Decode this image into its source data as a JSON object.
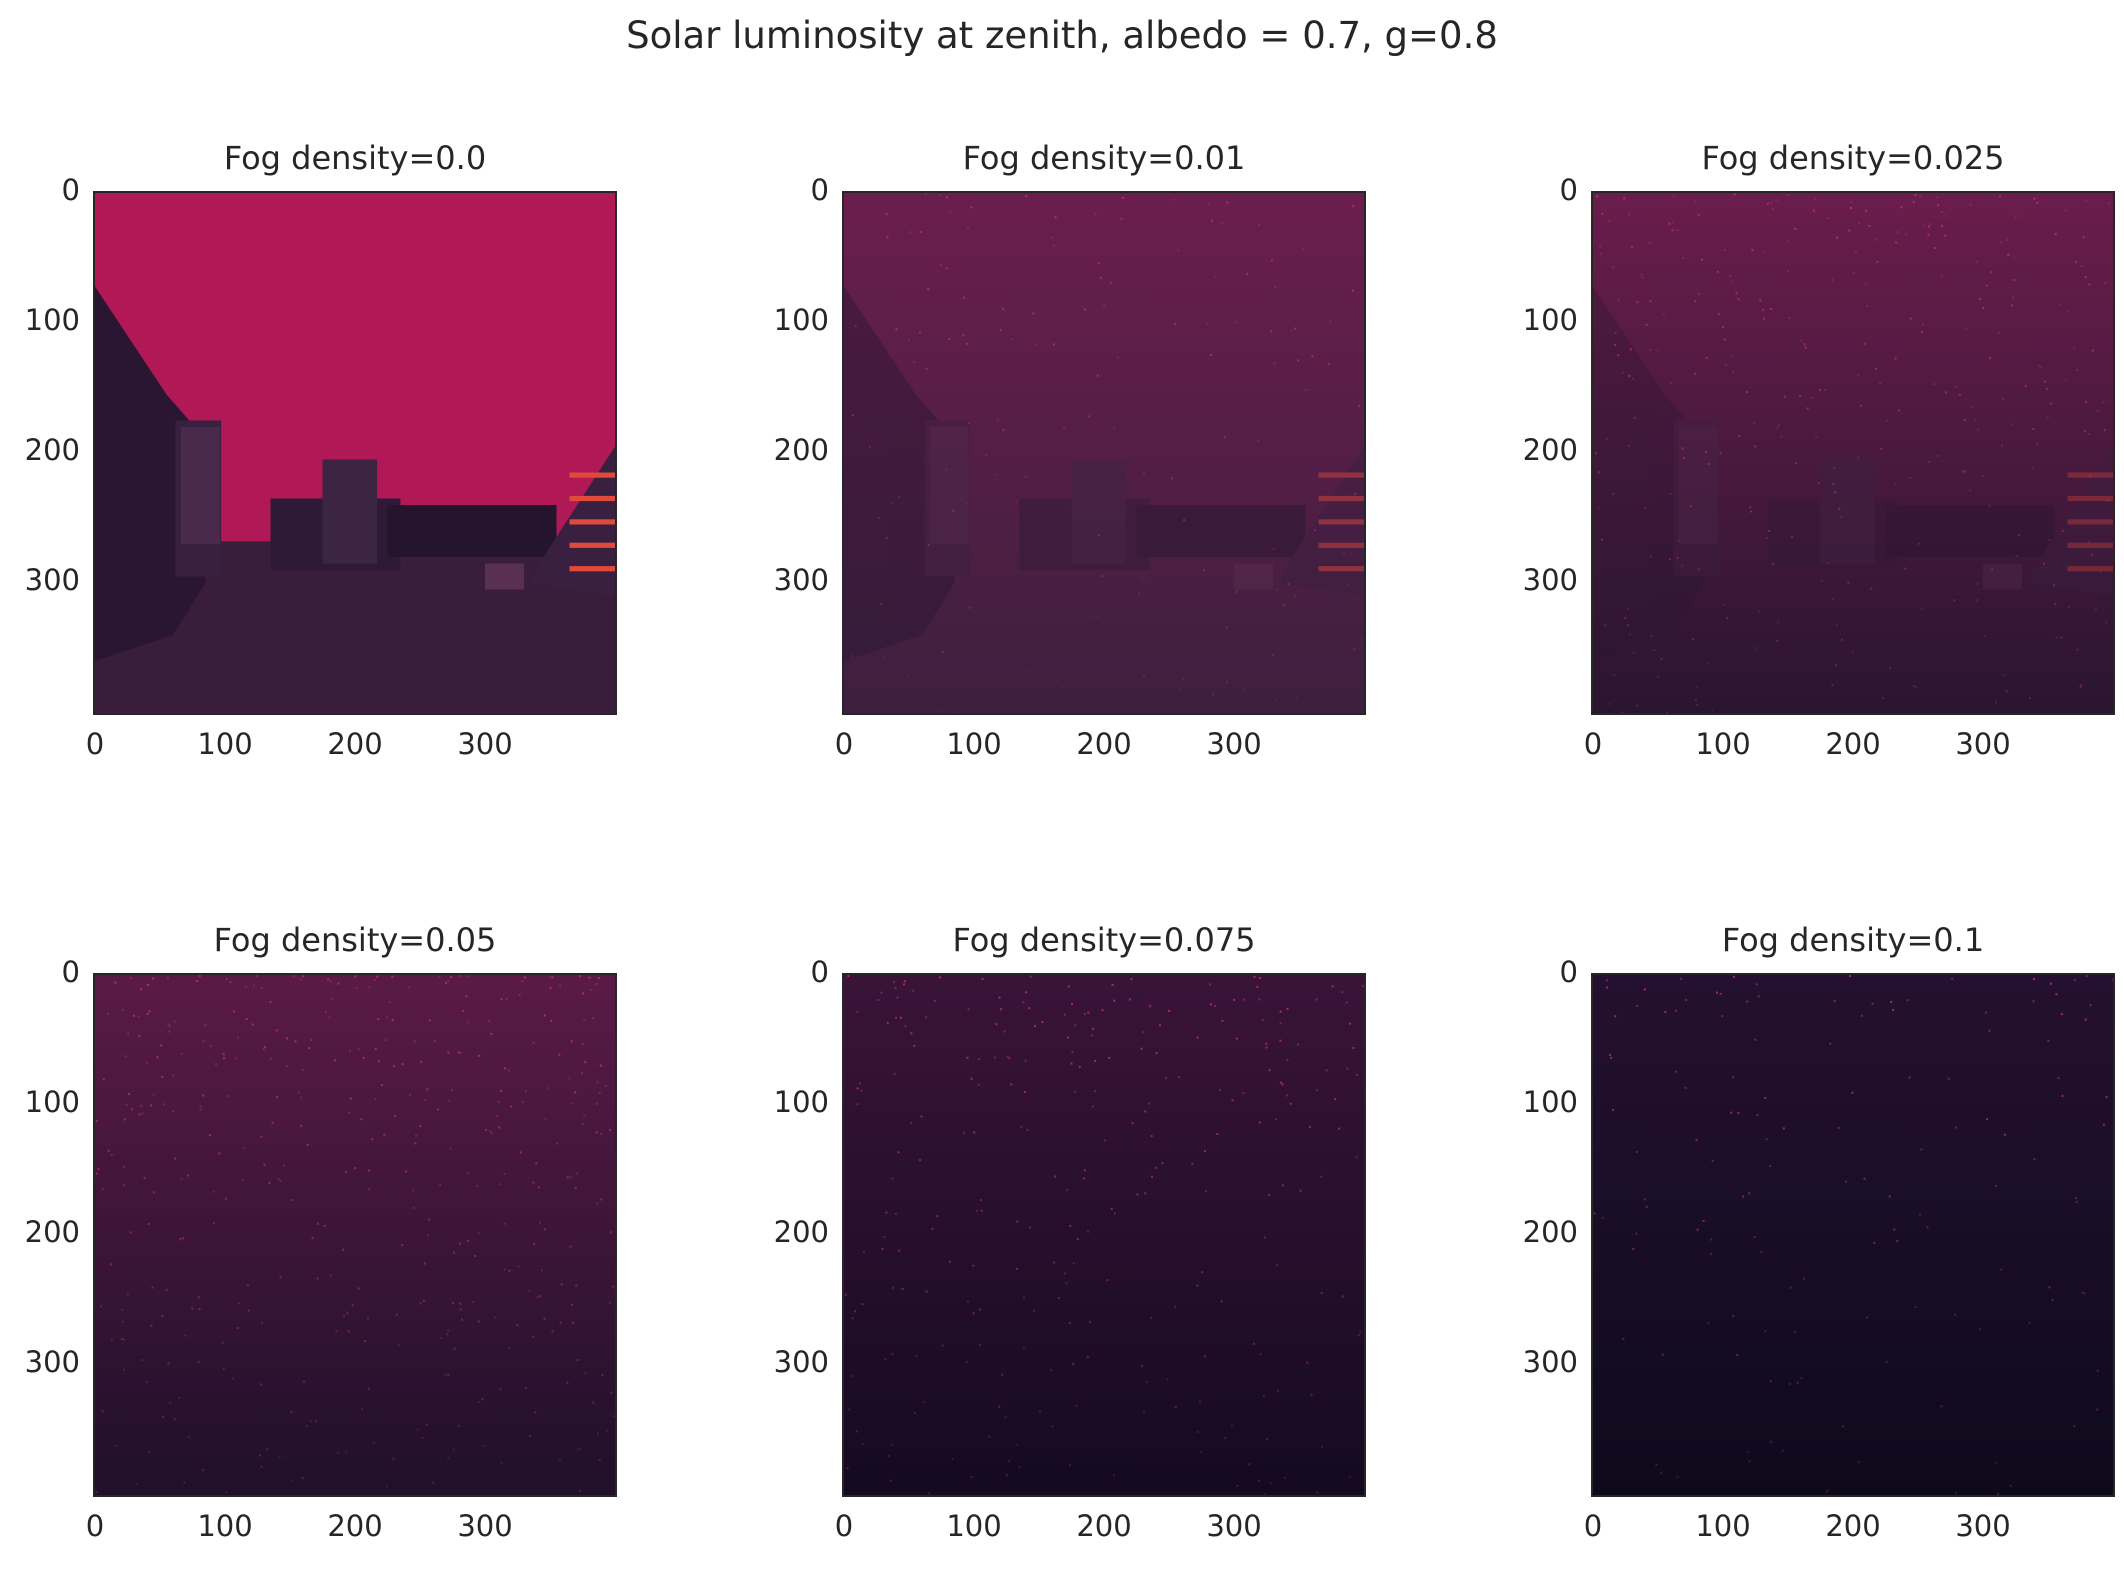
{
  "chart_data": {
    "type": "heatmap",
    "title": "Solar luminosity at zenith, albedo = 0.7, g=0.8",
    "colormap": "rocket",
    "image_size": [
      400,
      400
    ],
    "grid": false,
    "layout": "2x3",
    "panels": [
      {
        "title": "Fog density=0.0",
        "fog_density": 0.0,
        "sky_color": "#b01856",
        "ground_color": "#3a1d3a",
        "scene_visibility": 1.0,
        "speckle_density": 0.0
      },
      {
        "title": "Fog density=0.01",
        "fog_density": 0.01,
        "sky_color": "#6b1e4e",
        "ground_color": "#3d1f3e",
        "scene_visibility": 0.45,
        "speckle_density": 0.15
      },
      {
        "title": "Fog density=0.025",
        "fog_density": 0.025,
        "sky_color": "#6a1d4c",
        "ground_color": "#2a1530",
        "scene_visibility": 0.08,
        "speckle_density": 0.35
      },
      {
        "title": "Fog density=0.05",
        "fog_density": 0.05,
        "sky_color": "#5a1a48",
        "ground_color": "#1f1029",
        "scene_visibility": 0.0,
        "speckle_density": 0.45
      },
      {
        "title": "Fog density=0.075",
        "fog_density": 0.075,
        "sky_color": "#3a1339",
        "ground_color": "#140a20",
        "scene_visibility": 0.0,
        "speckle_density": 0.3
      },
      {
        "title": "Fog density=0.1",
        "fog_density": 0.1,
        "sky_color": "#241030",
        "ground_color": "#0e0a1c",
        "scene_visibility": 0.0,
        "speckle_density": 0.15
      }
    ],
    "x_ticks": [
      "0",
      "100",
      "200",
      "300"
    ],
    "y_ticks": [
      "0",
      "100",
      "200",
      "300"
    ],
    "xlim": [
      0,
      400
    ],
    "ylim": [
      400,
      0
    ]
  }
}
